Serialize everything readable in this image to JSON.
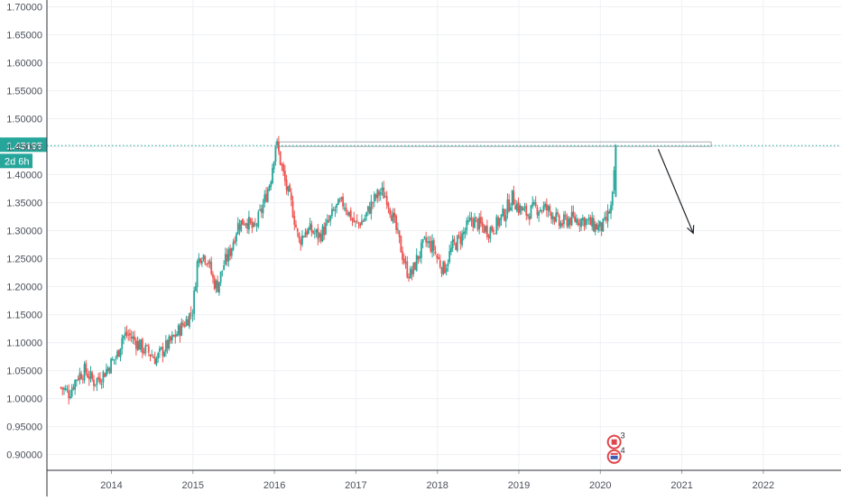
{
  "chart_data": {
    "type": "candlestick",
    "title": "",
    "xlabel": "",
    "ylabel": "",
    "y_ticks": [
      "1.70000",
      "1.65000",
      "1.60000",
      "1.55000",
      "1.50000",
      "1.45000",
      "1.40000",
      "1.35000",
      "1.30000",
      "1.25000",
      "1.20000",
      "1.15000",
      "1.10000",
      "1.05000",
      "1.00000",
      "0.95000",
      "0.90000"
    ],
    "x_ticks": [
      "2014",
      "2015",
      "2016",
      "2017",
      "2018",
      "2019",
      "2020",
      "2021",
      "2022"
    ],
    "ylim": [
      0.872,
      1.712
    ],
    "xlim": [
      2013.35,
      2022.95
    ],
    "grid": true,
    "price_axis_position": "left",
    "last_price": {
      "value": 1.45195,
      "label": "1.45195",
      "countdown": "2d 6h"
    },
    "resistance_zone": {
      "x_start": 2016.02,
      "x_end": 2021.36,
      "y_low": 1.4505,
      "y_high": 1.4585
    },
    "projection_arrow": {
      "from": [
        2020.71,
        1.4455
      ],
      "to": [
        2021.14,
        1.2955
      ]
    },
    "event_markers": [
      {
        "x": 2020.17,
        "y": 0.9225,
        "label": "3",
        "flag": "canada"
      },
      {
        "x": 2020.17,
        "y": 0.8965,
        "label": "4",
        "flag": "usa"
      }
    ],
    "price_path": [
      [
        2013.38,
        1.02
      ],
      [
        2013.48,
        1.01
      ],
      [
        2013.58,
        1.04
      ],
      [
        2013.68,
        1.05
      ],
      [
        2013.78,
        1.03
      ],
      [
        2013.88,
        1.04
      ],
      [
        2013.98,
        1.06
      ],
      [
        2014.08,
        1.08
      ],
      [
        2014.13,
        1.11
      ],
      [
        2014.2,
        1.115
      ],
      [
        2014.28,
        1.105
      ],
      [
        2014.38,
        1.09
      ],
      [
        2014.48,
        1.08
      ],
      [
        2014.55,
        1.07
      ],
      [
        2014.62,
        1.085
      ],
      [
        2014.72,
        1.1
      ],
      [
        2014.82,
        1.12
      ],
      [
        2014.92,
        1.14
      ],
      [
        2015.0,
        1.16
      ],
      [
        2015.05,
        1.24
      ],
      [
        2015.1,
        1.26
      ],
      [
        2015.18,
        1.25
      ],
      [
        2015.25,
        1.21
      ],
      [
        2015.3,
        1.2
      ],
      [
        2015.38,
        1.24
      ],
      [
        2015.45,
        1.26
      ],
      [
        2015.55,
        1.31
      ],
      [
        2015.65,
        1.32
      ],
      [
        2015.75,
        1.3
      ],
      [
        2015.85,
        1.34
      ],
      [
        2015.95,
        1.39
      ],
      [
        2016.02,
        1.46
      ],
      [
        2016.08,
        1.42
      ],
      [
        2016.14,
        1.38
      ],
      [
        2016.22,
        1.34
      ],
      [
        2016.3,
        1.28
      ],
      [
        2016.38,
        1.3
      ],
      [
        2016.45,
        1.3
      ],
      [
        2016.55,
        1.29
      ],
      [
        2016.65,
        1.31
      ],
      [
        2016.75,
        1.34
      ],
      [
        2016.85,
        1.35
      ],
      [
        2016.92,
        1.33
      ],
      [
        2017.0,
        1.31
      ],
      [
        2017.1,
        1.32
      ],
      [
        2017.2,
        1.35
      ],
      [
        2017.3,
        1.37
      ],
      [
        2017.38,
        1.36
      ],
      [
        2017.46,
        1.32
      ],
      [
        2017.55,
        1.27
      ],
      [
        2017.62,
        1.23
      ],
      [
        2017.68,
        1.22
      ],
      [
        2017.75,
        1.25
      ],
      [
        2017.85,
        1.28
      ],
      [
        2017.95,
        1.27
      ],
      [
        2018.0,
        1.25
      ],
      [
        2018.08,
        1.23
      ],
      [
        2018.18,
        1.27
      ],
      [
        2018.3,
        1.29
      ],
      [
        2018.42,
        1.32
      ],
      [
        2018.52,
        1.31
      ],
      [
        2018.62,
        1.3
      ],
      [
        2018.72,
        1.31
      ],
      [
        2018.82,
        1.33
      ],
      [
        2018.92,
        1.36
      ],
      [
        2019.0,
        1.34
      ],
      [
        2019.1,
        1.33
      ],
      [
        2019.2,
        1.34
      ],
      [
        2019.32,
        1.34
      ],
      [
        2019.42,
        1.33
      ],
      [
        2019.5,
        1.31
      ],
      [
        2019.6,
        1.32
      ],
      [
        2019.7,
        1.32
      ],
      [
        2019.8,
        1.32
      ],
      [
        2019.9,
        1.31
      ],
      [
        2020.0,
        1.305
      ],
      [
        2020.05,
        1.31
      ],
      [
        2020.1,
        1.33
      ],
      [
        2020.13,
        1.34
      ],
      [
        2020.15,
        1.36
      ],
      [
        2020.17,
        1.4
      ],
      [
        2020.19,
        1.452
      ]
    ]
  }
}
